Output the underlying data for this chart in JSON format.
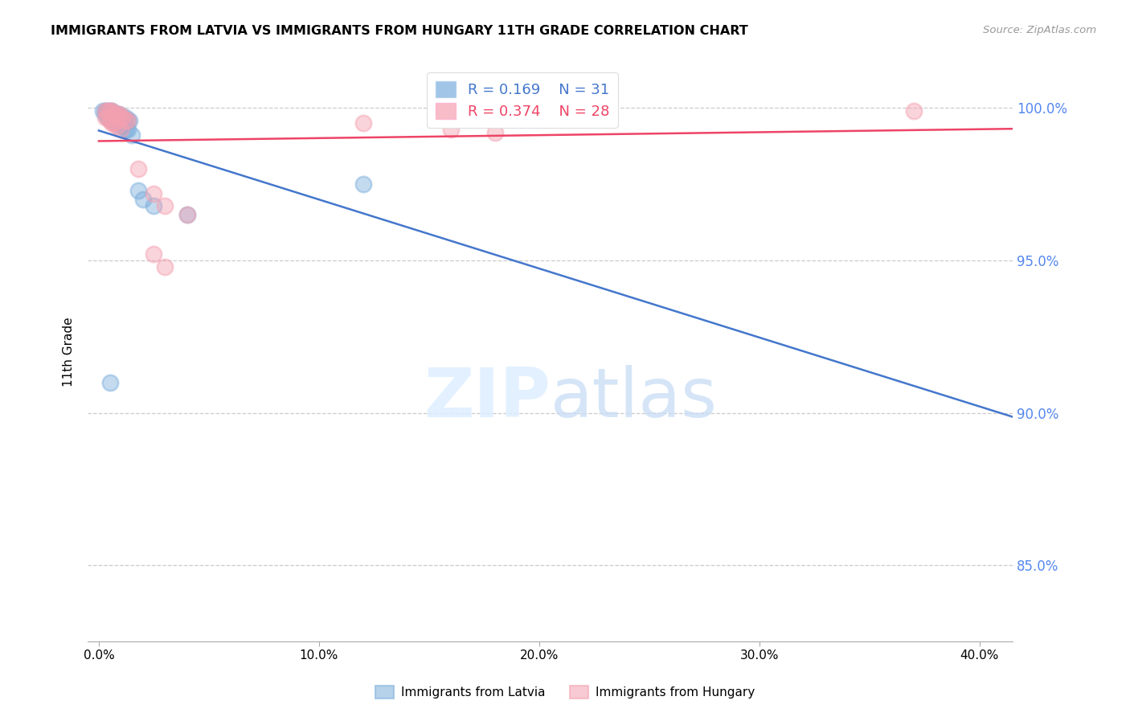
{
  "title": "IMMIGRANTS FROM LATVIA VS IMMIGRANTS FROM HUNGARY 11TH GRADE CORRELATION CHART",
  "source": "Source: ZipAtlas.com",
  "ylabel": "11th Grade",
  "y_ticks_right": [
    "100.0%",
    "95.0%",
    "90.0%",
    "85.0%"
  ],
  "y_tick_vals": [
    1.0,
    0.95,
    0.9,
    0.85
  ],
  "x_tick_positions": [
    0.0,
    0.1,
    0.2,
    0.3,
    0.4
  ],
  "x_tick_labels": [
    "0.0%",
    "10.0%",
    "20.0%",
    "30.0%",
    "40.0%"
  ],
  "xlim": [
    -0.005,
    0.415
  ],
  "ylim": [
    0.825,
    1.015
  ],
  "legend_latvia_R": "0.169",
  "legend_latvia_N": "31",
  "legend_hungary_R": "0.374",
  "legend_hungary_N": "28",
  "latvia_color": "#7aaddc",
  "hungary_color": "#f4a0b0",
  "trendline_latvia_color": "#4477cc",
  "trendline_hungary_color": "#ee4466",
  "latvia_x": [
    0.002,
    0.003,
    0.004,
    0.005,
    0.006,
    0.007,
    0.008,
    0.009,
    0.01,
    0.011,
    0.012,
    0.013,
    0.014,
    0.003,
    0.004,
    0.005,
    0.006,
    0.007,
    0.008,
    0.009,
    0.01,
    0.011,
    0.012,
    0.013,
    0.015,
    0.018,
    0.02,
    0.025,
    0.04,
    0.12,
    0.005
  ],
  "latvia_y": [
    0.999,
    0.999,
    0.999,
    0.999,
    0.999,
    0.998,
    0.998,
    0.998,
    0.997,
    0.997,
    0.997,
    0.996,
    0.996,
    0.998,
    0.997,
    0.997,
    0.996,
    0.996,
    0.995,
    0.995,
    0.994,
    0.994,
    0.993,
    0.993,
    0.991,
    0.973,
    0.97,
    0.968,
    0.965,
    0.975,
    0.91
  ],
  "hungary_x": [
    0.003,
    0.004,
    0.005,
    0.006,
    0.007,
    0.008,
    0.009,
    0.01,
    0.011,
    0.012,
    0.013,
    0.003,
    0.004,
    0.005,
    0.006,
    0.007,
    0.008,
    0.018,
    0.025,
    0.03,
    0.04,
    0.025,
    0.03,
    0.12,
    0.16,
    0.18,
    0.37,
    0.01
  ],
  "hungary_y": [
    0.999,
    0.999,
    0.999,
    0.999,
    0.998,
    0.998,
    0.998,
    0.997,
    0.997,
    0.996,
    0.996,
    0.997,
    0.997,
    0.996,
    0.995,
    0.995,
    0.994,
    0.98,
    0.972,
    0.968,
    0.965,
    0.952,
    0.948,
    0.995,
    0.993,
    0.992,
    0.999,
    0.993
  ]
}
